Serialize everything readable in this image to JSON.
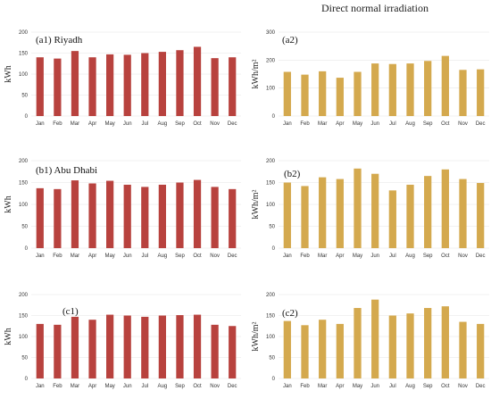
{
  "header": {
    "title": "Direct normal irradiation"
  },
  "chart_data": [
    {
      "type": "bar",
      "panel": "(a1) Riyadh",
      "ylabel": "kWh",
      "color": "#b8423e",
      "ylim": [
        0,
        200
      ],
      "yticks": [
        0,
        50,
        100,
        150,
        200
      ],
      "categories": [
        "Jan",
        "Feb",
        "Mar",
        "Apr",
        "May",
        "Jun",
        "Jul",
        "Aug",
        "Sep",
        "Oct",
        "Nov",
        "Dec"
      ],
      "values": [
        140,
        137,
        155,
        140,
        147,
        146,
        150,
        153,
        157,
        165,
        138,
        140
      ]
    },
    {
      "type": "bar",
      "panel": "(a2)",
      "ylabel": "kWh/m²",
      "color": "#d4a94e",
      "ylim": [
        0,
        300
      ],
      "yticks": [
        0,
        100,
        200,
        300
      ],
      "categories": [
        "Jan",
        "Feb",
        "Mar",
        "Apr",
        "May",
        "Jun",
        "Jul",
        "Aug",
        "Sep",
        "Oct",
        "Nov",
        "Dec"
      ],
      "values": [
        158,
        148,
        160,
        137,
        158,
        188,
        186,
        188,
        197,
        215,
        165,
        167
      ]
    },
    {
      "type": "bar",
      "panel": "(b1) Abu Dhabi",
      "ylabel": "kWh",
      "color": "#b8423e",
      "ylim": [
        0,
        200
      ],
      "yticks": [
        0,
        50,
        100,
        150,
        200
      ],
      "categories": [
        "Jan",
        "Feb",
        "Mar",
        "Apr",
        "May",
        "Jun",
        "Jul",
        "Aug",
        "Sep",
        "Oct",
        "Nov",
        "Dec"
      ],
      "values": [
        137,
        135,
        155,
        148,
        154,
        145,
        140,
        145,
        150,
        156,
        140,
        135
      ]
    },
    {
      "type": "bar",
      "panel": "(b2)",
      "ylabel": "kWh/m²",
      "color": "#d4a94e",
      "ylim": [
        0,
        200
      ],
      "yticks": [
        0,
        50,
        100,
        150,
        200
      ],
      "categories": [
        "Jan",
        "Feb",
        "Mar",
        "Apr",
        "May",
        "Jun",
        "Jul",
        "Aug",
        "Sep",
        "Oct",
        "Nov",
        "Dec"
      ],
      "values": [
        150,
        142,
        162,
        158,
        182,
        170,
        132,
        145,
        165,
        180,
        158,
        149
      ]
    },
    {
      "type": "bar",
      "panel": "(c1)",
      "ylabel": "kWh",
      "color": "#b8423e",
      "ylim": [
        0,
        200
      ],
      "yticks": [
        0,
        50,
        100,
        150,
        200
      ],
      "categories": [
        "Jan",
        "Feb",
        "Mar",
        "Apr",
        "May",
        "Jun",
        "Jul",
        "Aug",
        "Sep",
        "Oct",
        "Nov",
        "Dec"
      ],
      "values": [
        130,
        128,
        147,
        140,
        152,
        150,
        147,
        150,
        151,
        152,
        128,
        125
      ]
    },
    {
      "type": "bar",
      "panel": "(c2)",
      "ylabel": "kWh/m²",
      "color": "#d4a94e",
      "ylim": [
        0,
        200
      ],
      "yticks": [
        0,
        50,
        100,
        150,
        200
      ],
      "categories": [
        "Jan",
        "Feb",
        "Mar",
        "Apr",
        "May",
        "Jun",
        "Jul",
        "Aug",
        "Sep",
        "Oct",
        "Nov",
        "Dec"
      ],
      "values": [
        137,
        127,
        140,
        130,
        168,
        188,
        150,
        155,
        168,
        172,
        135,
        130
      ]
    }
  ]
}
